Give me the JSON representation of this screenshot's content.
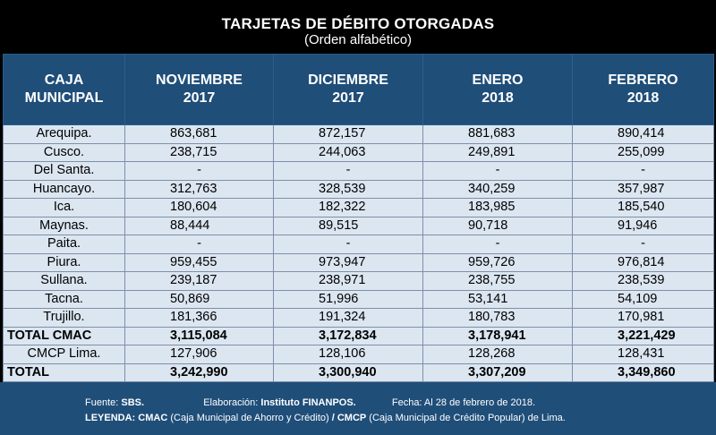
{
  "title": "TARJETAS DE DÉBITO OTORGADAS",
  "subtitle": "(Orden alfabético)",
  "headers": {
    "col0": [
      "CAJA",
      "MUNICIPAL"
    ],
    "col1": [
      "NOVIEMBRE",
      "2017"
    ],
    "col2": [
      "DICIEMBRE",
      "2017"
    ],
    "col3": [
      "ENERO",
      "2018"
    ],
    "col4": [
      "FEBRERO",
      "2018"
    ]
  },
  "rows": [
    {
      "name": "Arequipa.",
      "values": [
        "863,681",
        "872,157",
        "881,683",
        "890,414"
      ]
    },
    {
      "name": "Cusco.",
      "values": [
        "238,715",
        "244,063",
        "249,891",
        "255,099"
      ]
    },
    {
      "name": "Del Santa.",
      "values": [
        "-",
        "-",
        "-",
        "-"
      ]
    },
    {
      "name": "Huancayo.",
      "values": [
        "312,763",
        "328,539",
        "340,259",
        "357,987"
      ]
    },
    {
      "name": "Ica.",
      "values": [
        "180,604",
        "182,322",
        "183,985",
        "185,540"
      ]
    },
    {
      "name": "Maynas.",
      "values": [
        "88,444",
        "89,515",
        "90,718",
        "91,946"
      ]
    },
    {
      "name": "Paita.",
      "values": [
        "-",
        "-",
        "-",
        "-"
      ]
    },
    {
      "name": "Piura.",
      "values": [
        "959,455",
        "973,947",
        "959,726",
        "976,814"
      ]
    },
    {
      "name": "Sullana.",
      "values": [
        "239,187",
        "238,971",
        "238,755",
        "238,539"
      ]
    },
    {
      "name": "Tacna.",
      "values": [
        "50,869",
        "51,996",
        "53,141",
        "54,109"
      ]
    },
    {
      "name": "Trujillo.",
      "values": [
        "181,366",
        "191,324",
        "180,783",
        "170,981"
      ]
    },
    {
      "name": "TOTAL CMAC",
      "values": [
        "3,115,084",
        "3,172,834",
        "3,178,941",
        "3,221,429"
      ],
      "bold": true
    },
    {
      "name": "CMCP Lima.",
      "values": [
        "127,906",
        "128,106",
        "128,268",
        "128,431"
      ]
    },
    {
      "name": "TOTAL",
      "values": [
        "3,242,990",
        "3,300,940",
        "3,307,209",
        "3,349,860"
      ],
      "bold": true
    }
  ],
  "footer": {
    "fuente_label": "Fuente:",
    "fuente_value": "SBS.",
    "elaboracion_label": "Elaboración:",
    "elaboracion_value": "Instituto FINANPOS.",
    "fecha_text": "Fecha: Al 28 de febrero de 2018.",
    "leyenda_label": "LEYENDA:",
    "cmac_label": "CMAC",
    "cmac_desc": "(Caja Municipal de Ahorro y Crédito)",
    "cmcp_label": "/ CMCP",
    "cmcp_desc": "(Caja Municipal de Crédito Popular) de Lima."
  },
  "colors": {
    "header_bg": "#1f4e79",
    "cell_bg": "#dce6f1",
    "page_bg": "#000000"
  }
}
